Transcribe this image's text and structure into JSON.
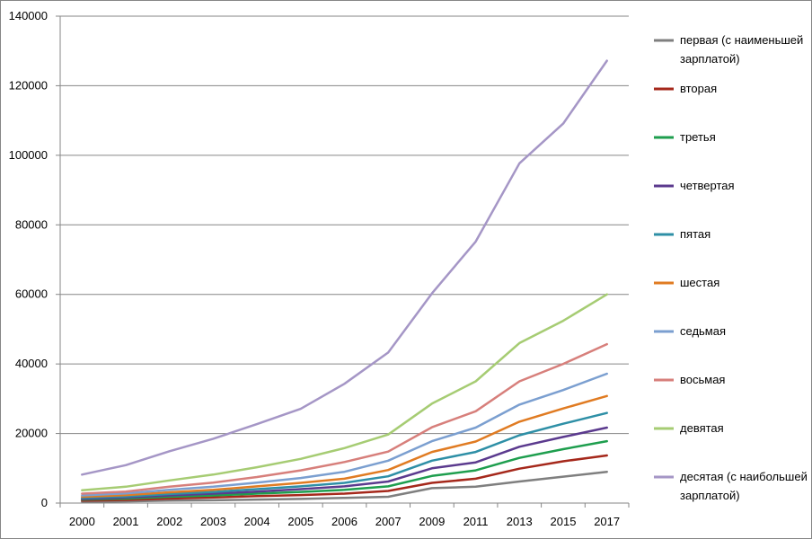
{
  "chart_data": {
    "type": "line",
    "title": "",
    "xlabel": "",
    "ylabel": "",
    "ylim": [
      0,
      140000
    ],
    "yticks": [
      0,
      20000,
      40000,
      60000,
      80000,
      100000,
      120000,
      140000
    ],
    "grid": true,
    "legend_position": "right",
    "categories": [
      "2000",
      "2001",
      "2002",
      "2003",
      "2004",
      "2005",
      "2006",
      "2007",
      "2009",
      "2011",
      "2013",
      "2015",
      "2017"
    ],
    "series": [
      {
        "name": "первая (с наименьшей зарплатой)",
        "color": "#7f7f7f",
        "values": [
          400,
          500,
          700,
          800,
          1000,
          1200,
          1500,
          1800,
          4300,
          4700,
          6200,
          7600,
          9000
        ]
      },
      {
        "name": "вторая",
        "color": "#a5281b",
        "values": [
          700,
          900,
          1300,
          1600,
          2000,
          2300,
          2700,
          3500,
          5800,
          7000,
          9900,
          12000,
          13700
        ]
      },
      {
        "name": "третья",
        "color": "#1e9e4e",
        "values": [
          1000,
          1300,
          1800,
          2200,
          2700,
          3200,
          3800,
          4800,
          7800,
          9400,
          13000,
          15500,
          17800
        ]
      },
      {
        "name": "четвертая",
        "color": "#5b3a8e",
        "values": [
          1200,
          1600,
          2200,
          2700,
          3300,
          4000,
          4800,
          6200,
          10000,
          11700,
          16200,
          19000,
          21700
        ]
      },
      {
        "name": "пятая",
        "color": "#2e8fa6",
        "values": [
          1500,
          1900,
          2600,
          3200,
          4000,
          4800,
          5800,
          7700,
          12200,
          14700,
          19500,
          22800,
          25900
        ]
      },
      {
        "name": "шестая",
        "color": "#e07b22",
        "values": [
          1800,
          2300,
          3100,
          3800,
          4800,
          5800,
          7000,
          9500,
          14700,
          17700,
          23400,
          27200,
          30800
        ]
      },
      {
        "name": "седьмая",
        "color": "#7b9fd0",
        "values": [
          2200,
          2800,
          3800,
          4700,
          5900,
          7200,
          9000,
          12200,
          17800,
          21700,
          28300,
          32500,
          37200
        ]
      },
      {
        "name": "восьмая",
        "color": "#d77f7b",
        "values": [
          2700,
          3300,
          4700,
          5900,
          7500,
          9400,
          11800,
          14800,
          21800,
          26400,
          35000,
          40000,
          45700
        ]
      },
      {
        "name": "девятая",
        "color": "#a6cc73",
        "values": [
          3700,
          4700,
          6500,
          8200,
          10300,
          12700,
          15800,
          19700,
          28600,
          35000,
          46000,
          52400,
          60000
        ]
      },
      {
        "name": "десятая (с наибольшей зарплатой)",
        "color": "#a596c6",
        "values": [
          8200,
          10900,
          14900,
          18500,
          22700,
          27100,
          34300,
          43300,
          60300,
          75200,
          97700,
          109100,
          127200
        ]
      }
    ]
  }
}
